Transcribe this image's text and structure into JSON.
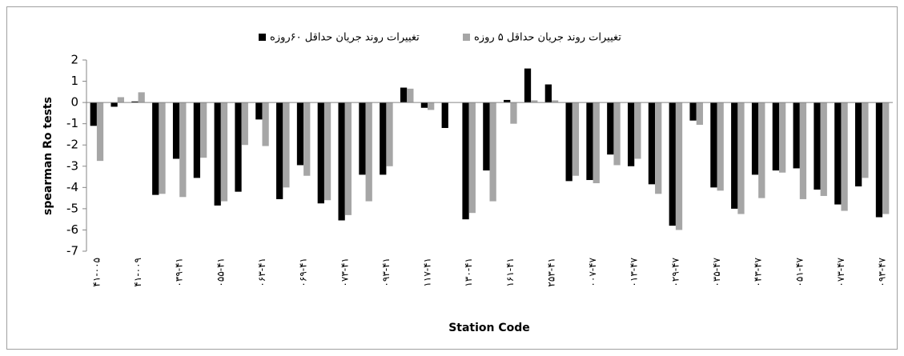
{
  "chart_data": {
    "type": "bar",
    "x_label": "Station Code",
    "y_label": "spearman Ro tests",
    "categories": [
      "۴۱-۰۰۵",
      null,
      "۴۱-۰۰۹",
      null,
      "۰۳۹-۴۱",
      null,
      "۰۵۵-۴۱",
      null,
      "۰۶۳-۴۱",
      null,
      "۰۶۹-۴۱",
      null,
      "۰۷۳-۴۱",
      null,
      "۰۹۳-۴۱",
      null,
      "۱۱۷-۴۱",
      null,
      "۱۳۰-۴۱",
      null,
      "۱۶۱-۴۱",
      null,
      "۲۵۳-۴۱",
      null,
      "۰۰۷-۴۷",
      null,
      "۰۱۳-۴۷",
      null,
      "۰۲۹-۴۷",
      null,
      "۰۳۵-۴۷",
      null,
      "۰۴۳-۴۷",
      null,
      "۰۵۱-۴۷",
      null,
      "۰۷۳-۴۷",
      null,
      "۰۹۳-۴۷"
    ],
    "series": [
      {
        "name": "تغییرات روند جریان حداقل ۶۰روزه",
        "color": "#000000",
        "values": [
          -1.1,
          -0.2,
          0.05,
          -4.35,
          -2.65,
          -3.55,
          -4.85,
          -4.2,
          -0.8,
          -4.55,
          -2.95,
          -4.75,
          -5.55,
          -3.4,
          -3.4,
          0.7,
          -0.25,
          -1.2,
          -5.5,
          -3.2,
          0.12,
          1.6,
          0.85,
          -3.7,
          -3.65,
          -2.45,
          -3.0,
          -3.85,
          -5.8,
          -0.85,
          -4.0,
          -5.0,
          -3.4,
          -3.2,
          -3.1,
          -4.1,
          -4.8,
          -3.95,
          -5.4
        ]
      },
      {
        "name": "تغییرات روند جریان حداقل ۵ روزه",
        "color": "#a6a6a6",
        "values": [
          -2.75,
          0.25,
          0.48,
          -4.3,
          -4.45,
          -2.6,
          -4.65,
          -2.0,
          -2.05,
          -4.0,
          -3.45,
          -4.6,
          -5.3,
          -4.65,
          -3.0,
          0.65,
          -0.35,
          0,
          -5.2,
          -4.65,
          -1.0,
          0.1,
          0.1,
          -3.45,
          -3.8,
          -2.95,
          -2.65,
          -4.3,
          -6.0,
          -1.05,
          -4.15,
          -5.25,
          -4.5,
          -3.3,
          -4.55,
          -4.4,
          -5.1,
          -3.55,
          -5.25
        ]
      }
    ],
    "ylim": [
      -7,
      2
    ],
    "yticks": [
      -7,
      -6,
      -5,
      -4,
      -3,
      -2,
      -1,
      0,
      1,
      2
    ]
  }
}
